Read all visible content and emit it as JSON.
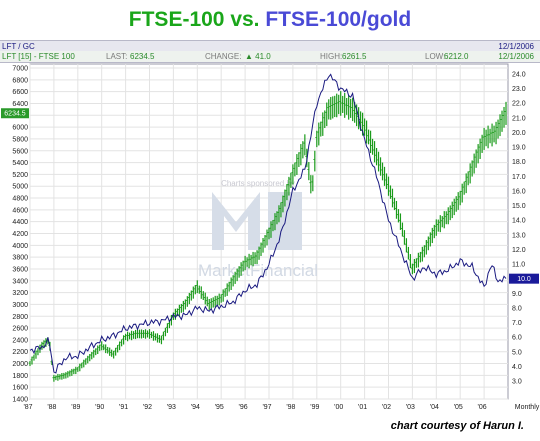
{
  "title": {
    "part1": "FTSE-100 vs.",
    "part2": "FTSE-100/gold"
  },
  "header": {
    "symbol": "LFT / GC",
    "date_top": "12/1/2006",
    "series_label": "LFT [15] - FTSE 100",
    "last_label": "LAST:",
    "last_value": "6234.5",
    "change_label": "CHANGE:",
    "change_value": "▲ 41.0",
    "high_label": "HIGH:",
    "high_value": "6261.5",
    "low_label": "LOW:",
    "low_value": "6212.0",
    "date_second": "12/1/2006"
  },
  "credit": "chart courtesy of Harun I.",
  "chart_data": {
    "type": "line",
    "x_ticks": [
      "'87",
      "'88",
      "'89",
      "'90",
      "'91",
      "'92",
      "'93",
      "'94",
      "'95",
      "'96",
      "'97",
      "'98",
      "'99",
      "'00",
      "'01",
      "'02",
      "'03",
      "'04",
      "'05",
      "'06"
    ],
    "x_end_label": "Monthly",
    "y_left": {
      "ticks": [
        1400,
        1600,
        1800,
        2000,
        2200,
        2400,
        2600,
        2800,
        3000,
        3200,
        3400,
        3600,
        3800,
        4000,
        4200,
        4400,
        4600,
        4800,
        5000,
        5200,
        5400,
        5600,
        5800,
        6000,
        6200,
        6400,
        6600,
        6800,
        7000
      ],
      "range": [
        1400,
        7000
      ]
    },
    "y_right": {
      "ticks": [
        "3.0",
        "4.0",
        "5.0",
        "6.0",
        "7.0",
        "8.0",
        "9.0",
        "10.0",
        "11.0",
        "12.0",
        "13.0",
        "14.0",
        "15.0",
        "16.0",
        "17.0",
        "18.0",
        "19.0",
        "20.0",
        "21.0",
        "22.0",
        "23.0",
        "24.0"
      ],
      "range": [
        3.0,
        24.6
      ]
    },
    "last_left": "6234.5",
    "last_right": "10.0",
    "grid": true,
    "watermark": {
      "line1": "Charts sponsored by",
      "line2": "MarketFinancial"
    },
    "series": [
      {
        "color": "#1a9a1a",
        "style": "bar",
        "axis": "left",
        "x": [
          1987.0,
          1987.5,
          1987.8,
          1988.0,
          1988.5,
          1989.0,
          1989.5,
          1990.0,
          1990.5,
          1991.0,
          1991.5,
          1992.0,
          1992.5,
          1993.0,
          1993.5,
          1994.0,
          1994.5,
          1995.0,
          1995.5,
          1996.0,
          1996.5,
          1997.0,
          1997.5,
          1998.0,
          1998.5,
          1998.8,
          1999.0,
          1999.5,
          2000.0,
          2000.5,
          2001.0,
          2001.5,
          2002.0,
          2002.5,
          2003.0,
          2003.5,
          2004.0,
          2004.5,
          2005.0,
          2005.5,
          2006.0,
          2006.5,
          2006.92
        ],
        "values": [
          2000,
          2300,
          2400,
          1750,
          1800,
          1900,
          2100,
          2300,
          2150,
          2450,
          2500,
          2500,
          2400,
          2800,
          3000,
          3300,
          3000,
          3100,
          3400,
          3700,
          3800,
          4200,
          4600,
          5200,
          5700,
          4900,
          5800,
          6300,
          6400,
          6300,
          6000,
          5500,
          5000,
          4400,
          3600,
          3900,
          4300,
          4500,
          4800,
          5300,
          5800,
          5900,
          6234.5
        ]
      },
      {
        "color": "#1a1a80",
        "style": "line",
        "axis": "right",
        "x": [
          1987.0,
          1987.5,
          1987.8,
          1988.0,
          1988.5,
          1989.0,
          1989.5,
          1990.0,
          1990.5,
          1991.0,
          1991.5,
          1992.0,
          1992.5,
          1993.0,
          1993.5,
          1994.0,
          1994.5,
          1995.0,
          1995.5,
          1996.0,
          1996.5,
          1997.0,
          1997.5,
          1998.0,
          1998.5,
          1999.0,
          1999.5,
          2000.0,
          2000.5,
          2001.0,
          2001.5,
          2002.0,
          2002.5,
          2003.0,
          2003.5,
          2004.0,
          2004.5,
          2005.0,
          2005.5,
          2006.0,
          2006.3,
          2006.6,
          2006.92
        ],
        "values": [
          5.1,
          5.3,
          5.8,
          3.6,
          4.6,
          4.7,
          5.3,
          5.8,
          6.1,
          6.6,
          6.8,
          7.0,
          7.1,
          7.4,
          7.5,
          8.0,
          7.8,
          8.1,
          8.4,
          9.2,
          9.6,
          11.0,
          13.0,
          16.0,
          17.5,
          22.0,
          24.0,
          23.0,
          22.5,
          19.5,
          17.0,
          14.0,
          12.0,
          10.0,
          10.8,
          10.3,
          10.6,
          11.2,
          10.8,
          9.4,
          11.0,
          9.8,
          10.0
        ]
      }
    ]
  }
}
